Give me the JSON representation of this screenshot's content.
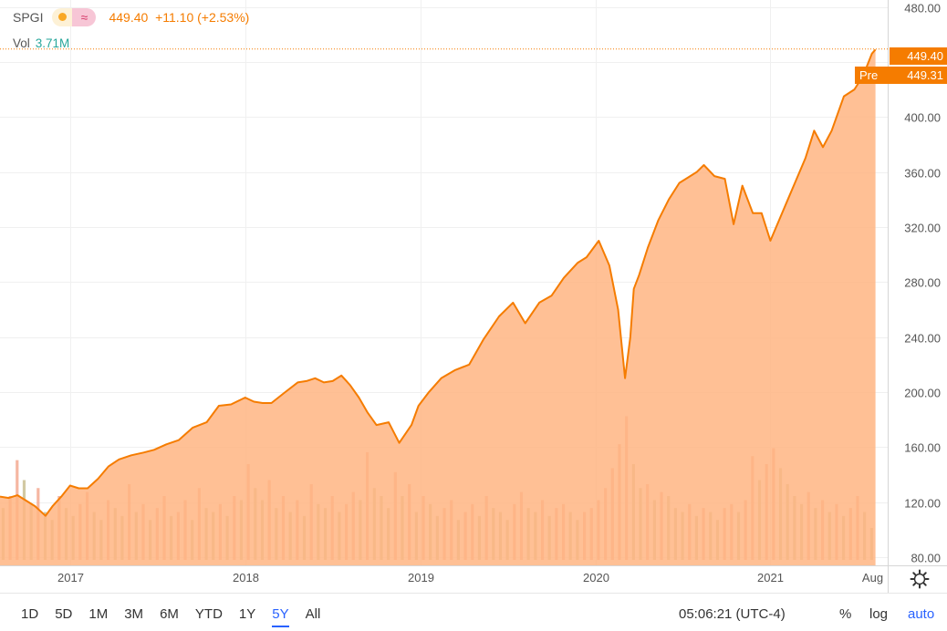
{
  "legend": {
    "symbol": "SPGI",
    "quote": "449.40  +11.10 (+2.53%)",
    "vol_label": "Vol",
    "vol_value": "3.71M",
    "icons": [
      "sun-icon",
      "wave-icon"
    ]
  },
  "price_tags": {
    "last": "449.40",
    "pre_label": "Pre",
    "pre": "449.31"
  },
  "range_buttons": [
    "1D",
    "5D",
    "1M",
    "3M",
    "6M",
    "YTD",
    "1Y",
    "5Y",
    "All"
  ],
  "active_range": "5Y",
  "clock": "05:06:21 (UTC-4)",
  "scale_options": {
    "percent": "%",
    "log": "log",
    "auto": "auto"
  },
  "colors": {
    "line": "#f57c00",
    "area": "#ffb582",
    "vol_up": "#c7bc8c",
    "vol_down": "#f2a489",
    "active": "#2962ff"
  },
  "chart_data": {
    "type": "area",
    "title": "",
    "xlabel": "",
    "ylabel": "",
    "x_ticks": [
      "2017",
      "2018",
      "2019",
      "2020",
      "2021",
      "Aug"
    ],
    "x_tick_dates": [
      2017.0,
      2018.0,
      2019.0,
      2020.0,
      2021.0,
      2021.58
    ],
    "y_ticks": [
      80,
      120,
      160,
      200,
      240,
      280,
      320,
      360,
      400,
      440,
      480
    ],
    "y_tick_labels": [
      "80.00",
      "120.00",
      "160.00",
      "200.00",
      "240.00",
      "280.00",
      "320.00",
      "360.00",
      "400.00",
      "",
      "480.00"
    ],
    "ylim": [
      74,
      485
    ],
    "xlim": [
      2016.6,
      2021.67
    ],
    "last_price": 449.4,
    "pre_price": 449.31,
    "grid": true,
    "series": [
      {
        "x": [
          2016.6,
          2016.65,
          2016.7,
          2016.75,
          2016.8,
          2016.86,
          2016.9,
          2016.95,
          2017.0,
          2017.05,
          2017.1,
          2017.16,
          2017.22,
          2017.28,
          2017.35,
          2017.42,
          2017.48,
          2017.55,
          2017.62,
          2017.7,
          2017.78,
          2017.85,
          2017.92,
          2018.0,
          2018.05,
          2018.1,
          2018.15,
          2018.22,
          2018.3,
          2018.35,
          2018.4,
          2018.45,
          2018.5,
          2018.55,
          2018.6,
          2018.65,
          2018.7,
          2018.75,
          2018.82,
          2018.88,
          2018.95,
          2018.99,
          2019.05,
          2019.12,
          2019.2,
          2019.28,
          2019.36,
          2019.45,
          2019.53,
          2019.6,
          2019.68,
          2019.75,
          2019.82,
          2019.9,
          2019.95,
          2020.02,
          2020.08,
          2020.13,
          2020.17,
          2020.2,
          2020.22,
          2020.25,
          2020.3,
          2020.36,
          2020.42,
          2020.48,
          2020.53,
          2020.58,
          2020.62,
          2020.68,
          2020.74,
          2020.79,
          2020.84,
          2020.9,
          2020.95,
          2021.0,
          2021.05,
          2021.1,
          2021.15,
          2021.2,
          2021.25,
          2021.3,
          2021.35,
          2021.42,
          2021.48,
          2021.53,
          2021.58,
          2021.6
        ],
        "values": [
          124,
          123,
          125,
          121,
          117,
          110,
          117,
          124,
          132,
          130,
          130,
          137,
          146,
          151,
          154,
          156,
          158,
          162,
          165,
          174,
          178,
          190,
          191,
          196,
          193,
          192,
          192,
          199,
          207,
          208,
          210,
          207,
          208,
          212,
          205,
          196,
          185,
          176,
          178,
          163,
          176,
          190,
          200,
          210,
          216,
          220,
          238,
          255,
          265,
          250,
          265,
          270,
          283,
          294,
          298,
          310,
          292,
          260,
          210,
          240,
          275,
          285,
          305,
          325,
          340,
          352,
          356,
          360,
          365,
          357,
          355,
          322,
          350,
          330,
          330,
          310,
          325,
          340,
          355,
          370,
          390,
          378,
          390,
          415,
          420,
          430,
          446,
          449
        ]
      },
      {
        "name": "Vol",
        "x": [
          2016.62,
          2016.66,
          2016.7,
          2016.74,
          2016.78,
          2016.82,
          2016.86,
          2016.9,
          2016.94,
          2016.98,
          2017.02,
          2017.06,
          2017.1,
          2017.14,
          2017.18,
          2017.22,
          2017.26,
          2017.3,
          2017.34,
          2017.38,
          2017.42,
          2017.46,
          2017.5,
          2017.54,
          2017.58,
          2017.62,
          2017.66,
          2017.7,
          2017.74,
          2017.78,
          2017.82,
          2017.86,
          2017.9,
          2017.94,
          2017.98,
          2018.02,
          2018.06,
          2018.1,
          2018.14,
          2018.18,
          2018.22,
          2018.26,
          2018.3,
          2018.34,
          2018.38,
          2018.42,
          2018.46,
          2018.5,
          2018.54,
          2018.58,
          2018.62,
          2018.66,
          2018.7,
          2018.74,
          2018.78,
          2018.82,
          2018.86,
          2018.9,
          2018.94,
          2018.98,
          2019.02,
          2019.06,
          2019.1,
          2019.14,
          2019.18,
          2019.22,
          2019.26,
          2019.3,
          2019.34,
          2019.38,
          2019.42,
          2019.46,
          2019.5,
          2019.54,
          2019.58,
          2019.62,
          2019.66,
          2019.7,
          2019.74,
          2019.78,
          2019.82,
          2019.86,
          2019.9,
          2019.94,
          2019.98,
          2020.02,
          2020.06,
          2020.1,
          2020.14,
          2020.18,
          2020.22,
          2020.26,
          2020.3,
          2020.34,
          2020.38,
          2020.42,
          2020.46,
          2020.5,
          2020.54,
          2020.58,
          2020.62,
          2020.66,
          2020.7,
          2020.74,
          2020.78,
          2020.82,
          2020.86,
          2020.9,
          2020.94,
          2020.98,
          2021.02,
          2021.06,
          2021.1,
          2021.14,
          2021.18,
          2021.22,
          2021.26,
          2021.3,
          2021.34,
          2021.38,
          2021.42,
          2021.46,
          2021.5,
          2021.54,
          2021.58
        ],
        "values": [
          1.3,
          1.6,
          2.5,
          2.0,
          1.4,
          1.8,
          1.2,
          1.0,
          1.6,
          1.3,
          1.1,
          1.4,
          1.7,
          1.2,
          1.0,
          1.5,
          1.3,
          1.1,
          1.9,
          1.2,
          1.4,
          1.0,
          1.3,
          1.6,
          1.1,
          1.2,
          1.5,
          1.0,
          1.8,
          1.3,
          1.2,
          1.4,
          1.1,
          1.6,
          1.5,
          2.4,
          1.8,
          1.5,
          2.0,
          1.3,
          1.6,
          1.2,
          1.5,
          1.1,
          1.9,
          1.4,
          1.3,
          1.6,
          1.2,
          1.4,
          1.7,
          1.5,
          2.7,
          1.8,
          1.6,
          1.3,
          2.2,
          1.6,
          1.9,
          1.2,
          1.6,
          1.4,
          1.1,
          1.3,
          1.5,
          1.0,
          1.2,
          1.4,
          1.1,
          1.6,
          1.3,
          1.2,
          1.0,
          1.4,
          1.7,
          1.3,
          1.2,
          1.5,
          1.1,
          1.3,
          1.4,
          1.2,
          1.0,
          1.2,
          1.3,
          1.5,
          1.8,
          2.3,
          2.9,
          3.6,
          2.4,
          1.8,
          1.9,
          1.5,
          1.7,
          1.6,
          1.3,
          1.2,
          1.4,
          1.1,
          1.3,
          1.2,
          1.0,
          1.3,
          1.4,
          1.2,
          1.5,
          2.6,
          2.0,
          2.4,
          2.8,
          2.3,
          1.9,
          1.6,
          1.4,
          1.7,
          1.3,
          1.5,
          1.2,
          1.4,
          1.1,
          1.3,
          1.6,
          1.2,
          0.8
        ]
      }
    ]
  }
}
